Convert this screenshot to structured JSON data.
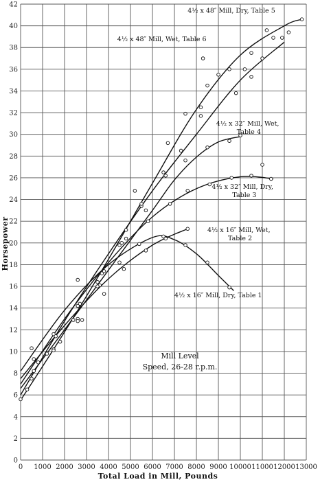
{
  "chart_data": {
    "type": "scatter",
    "xlabel": "Total Load in Mill, Pounds",
    "ylabel": "Horsepower",
    "xlim": [
      0,
      13000
    ],
    "ylim": [
      0,
      42
    ],
    "xticks": [
      0,
      1000,
      2000,
      3000,
      4000,
      5000,
      6000,
      7000,
      8000,
      9000,
      10000,
      11000,
      12000,
      13000
    ],
    "yticks": [
      0,
      2,
      4,
      6,
      8,
      10,
      12,
      14,
      16,
      18,
      20,
      22,
      24,
      26,
      28,
      30,
      32,
      34,
      36,
      38,
      40,
      42
    ],
    "grid": true,
    "annotation": [
      "Mill Level",
      "Speed, 26-28 r.p.m."
    ],
    "series": [
      {
        "name": "4½ x 48″ Mill, Dry, Table 5",
        "label_lines": [
          "4½ x 48″ Mill, Dry, Table 5"
        ],
        "curve": [
          [
            0,
            5.5
          ],
          [
            2000,
            11.8
          ],
          [
            4000,
            18.5
          ],
          [
            6000,
            25.5
          ],
          [
            8000,
            32.3
          ],
          [
            10000,
            37.3
          ],
          [
            12000,
            40.0
          ],
          [
            12800,
            40.6
          ]
        ],
        "points": [
          [
            0,
            5.6
          ],
          [
            1200,
            9.8
          ],
          [
            2400,
            12.9
          ],
          [
            3500,
            16.4
          ],
          [
            4500,
            19.8
          ],
          [
            5500,
            23.4
          ],
          [
            6700,
            29.2
          ],
          [
            7500,
            31.9
          ],
          [
            8500,
            34.5
          ],
          [
            9500,
            36.0
          ],
          [
            10500,
            37.5
          ],
          [
            11500,
            38.9
          ],
          [
            12200,
            39.4
          ],
          [
            12800,
            40.6
          ]
        ]
      },
      {
        "name": "4½ x 48″ Mill, Wet, Table 6",
        "label_lines": [
          "4½ x 48″ Mill, Wet, Table 6"
        ],
        "curve": [
          [
            0,
            6.0
          ],
          [
            2000,
            12.8
          ],
          [
            4000,
            19.0
          ],
          [
            6000,
            24.8
          ],
          [
            8000,
            30.0
          ],
          [
            10000,
            35.0
          ],
          [
            12000,
            38.5
          ]
        ],
        "points": [
          [
            300,
            6.5
          ],
          [
            1500,
            10.2
          ],
          [
            2600,
            13.0
          ],
          [
            3700,
            17.2
          ],
          [
            4800,
            21.2
          ],
          [
            5700,
            23.0
          ],
          [
            6500,
            26.5
          ],
          [
            7300,
            28.5
          ],
          [
            8200,
            32.5
          ],
          [
            9000,
            35.5
          ],
          [
            10200,
            36.0
          ],
          [
            11000,
            37.0
          ],
          [
            11900,
            38.9
          ]
        ]
      },
      {
        "name": "4½ x 32″ Mill, Wet, Table 4",
        "label_lines": [
          "4½ x 32″ Mill, Wet,",
          "Table 4"
        ],
        "curve": [
          [
            0,
            6.6
          ],
          [
            2000,
            12.0
          ],
          [
            4000,
            17.5
          ],
          [
            6000,
            23.0
          ],
          [
            7000,
            25.8
          ],
          [
            8000,
            27.9
          ],
          [
            9000,
            29.3
          ],
          [
            10000,
            29.8
          ]
        ],
        "points": [
          [
            500,
            7.5
          ],
          [
            1500,
            10.1
          ],
          [
            2600,
            12.8
          ],
          [
            3600,
            16.1
          ],
          [
            4600,
            20.0
          ],
          [
            5500,
            23.6
          ],
          [
            6600,
            26.2
          ],
          [
            7500,
            27.6
          ],
          [
            8500,
            28.8
          ],
          [
            9500,
            29.4
          ],
          [
            10000,
            29.9
          ]
        ]
      },
      {
        "name": "4½ x 32″ Mill, Dry, Table 3",
        "label_lines": [
          "4½ x 32″ Mill, Dry,",
          "Table 3"
        ],
        "curve": [
          [
            0,
            7.0
          ],
          [
            2000,
            13.0
          ],
          [
            4000,
            18.2
          ],
          [
            6000,
            22.4
          ],
          [
            8000,
            25.0
          ],
          [
            10000,
            26.1
          ],
          [
            11500,
            25.9
          ]
        ],
        "points": [
          [
            600,
            8.2
          ],
          [
            1600,
            11.4
          ],
          [
            2700,
            14.4
          ],
          [
            3800,
            17.4
          ],
          [
            4800,
            20.4
          ],
          [
            5800,
            22.0
          ],
          [
            6800,
            23.6
          ],
          [
            7600,
            24.8
          ],
          [
            8600,
            25.4
          ],
          [
            9600,
            26.0
          ],
          [
            10500,
            26.2
          ],
          [
            11400,
            25.9
          ]
        ]
      },
      {
        "name": "4½ x 16″ Mill, Wet, Table 2",
        "label_lines": [
          "4½ x 16″ Mill, Wet,",
          "Table 2"
        ],
        "curve": [
          [
            0,
            7.5
          ],
          [
            2000,
            12.4
          ],
          [
            4000,
            16.7
          ],
          [
            6000,
            19.8
          ],
          [
            7600,
            21.3
          ]
        ],
        "points": [
          [
            800,
            9.0
          ],
          [
            1800,
            10.9
          ],
          [
            2800,
            12.9
          ],
          [
            3800,
            15.3
          ],
          [
            4700,
            17.6
          ],
          [
            5700,
            19.3
          ],
          [
            6600,
            20.4
          ],
          [
            7600,
            21.3
          ]
        ]
      },
      {
        "name": "4½ x 16″ Mill, Dry, Table 1",
        "label_lines": [
          "4½ x 16″ Mill, Dry, Table 1"
        ],
        "curve": [
          [
            0,
            8.2
          ],
          [
            2000,
            13.8
          ],
          [
            4000,
            18.0
          ],
          [
            6000,
            20.5
          ],
          [
            7000,
            20.3
          ],
          [
            8000,
            19.0
          ],
          [
            9000,
            17.0
          ],
          [
            9700,
            15.6
          ]
        ],
        "points": [
          [
            600,
            9.3
          ],
          [
            1500,
            11.6
          ],
          [
            2600,
            14.2
          ],
          [
            3500,
            16.0
          ],
          [
            4500,
            18.2
          ],
          [
            5400,
            19.9
          ],
          [
            6500,
            20.6
          ],
          [
            7500,
            19.8
          ],
          [
            8500,
            18.2
          ],
          [
            9500,
            15.9
          ]
        ]
      }
    ],
    "stray_points": [
      [
        500,
        10.3
      ],
      [
        2600,
        16.6
      ],
      [
        5200,
        24.8
      ],
      [
        8300,
        37.0
      ],
      [
        9800,
        33.8
      ],
      [
        10500,
        35.3
      ],
      [
        11200,
        39.6
      ],
      [
        11000,
        27.2
      ],
      [
        8200,
        31.7
      ]
    ]
  }
}
